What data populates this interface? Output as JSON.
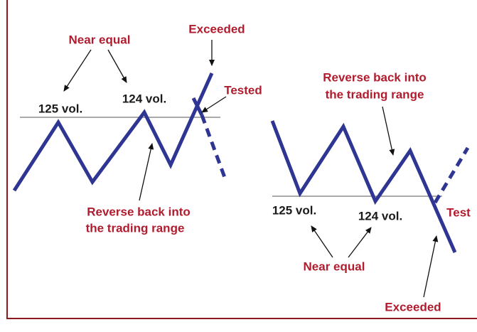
{
  "left": {
    "near_equal": "Near equal",
    "volume_1": "125 vol.",
    "volume_2": "124 vol.",
    "exceeded": "Exceeded",
    "tested": "Tested",
    "reverse": [
      "Reverse back into",
      "the trading range"
    ]
  },
  "right": {
    "reverse": [
      "Reverse back into",
      "the trading range"
    ],
    "volume_1": "125 vol.",
    "volume_2": "124 vol.",
    "test": "Test",
    "near_equal": "Near equal",
    "exceeded": "Exceeded"
  }
}
